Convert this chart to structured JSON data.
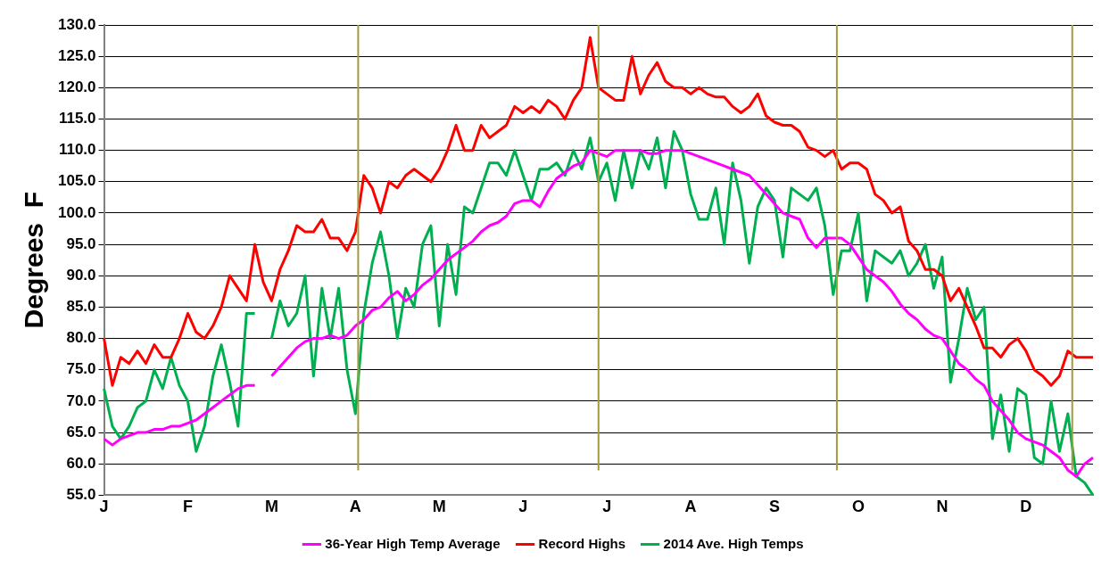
{
  "chart_data": {
    "type": "line",
    "ylabel": "Degrees  F",
    "categories": [
      "J",
      null,
      null,
      null,
      null,
      null,
      null,
      null,
      null,
      null,
      "F",
      null,
      null,
      null,
      null,
      null,
      null,
      null,
      null,
      null,
      "M",
      null,
      null,
      null,
      null,
      null,
      null,
      null,
      null,
      null,
      "A",
      null,
      null,
      null,
      null,
      null,
      null,
      null,
      null,
      null,
      "M",
      null,
      null,
      null,
      null,
      null,
      null,
      null,
      null,
      null,
      "J",
      null,
      null,
      null,
      null,
      null,
      null,
      null,
      null,
      null,
      "J",
      null,
      null,
      null,
      null,
      null,
      null,
      null,
      null,
      null,
      "A",
      null,
      null,
      null,
      null,
      null,
      null,
      null,
      null,
      null,
      "S",
      null,
      null,
      null,
      null,
      null,
      null,
      null,
      null,
      null,
      "O",
      null,
      null,
      null,
      null,
      null,
      null,
      null,
      null,
      null,
      "N",
      null,
      null,
      null,
      null,
      null,
      null,
      null,
      null,
      null,
      "D",
      null,
      null,
      null,
      null,
      null,
      null,
      null,
      null
    ],
    "ylim": [
      55,
      130
    ],
    "yticks": [
      {
        "value": 55,
        "label": "55.0"
      },
      {
        "value": 60,
        "label": "60.0"
      },
      {
        "value": 65,
        "label": "65.0"
      },
      {
        "value": 70,
        "label": "70.0"
      },
      {
        "value": 75,
        "label": "75.0"
      },
      {
        "value": 80,
        "label": "80.0"
      },
      {
        "value": 85,
        "label": "85.0"
      },
      {
        "value": 90,
        "label": "90.0"
      },
      {
        "value": 95,
        "label": "95.0"
      },
      {
        "value": 100,
        "label": "100.0"
      },
      {
        "value": 105,
        "label": "105.0"
      },
      {
        "value": 110,
        "label": "110.0"
      },
      {
        "value": 115,
        "label": "115.0"
      },
      {
        "value": 120,
        "label": "120.0"
      },
      {
        "value": 125,
        "label": "125.0"
      },
      {
        "value": 130,
        "label": "130.0"
      }
    ],
    "grid": "y",
    "legend": "bottom",
    "marker": "none",
    "line_style": "solid",
    "series": [
      {
        "name": "36-Year High Temp Average",
        "color": "#ff00ff",
        "values": [
          64,
          63,
          64,
          64.5,
          65,
          65,
          65.5,
          65.5,
          66,
          66,
          66.5,
          67,
          68,
          69,
          70,
          71,
          72,
          72.5,
          72.5,
          null,
          74,
          75.5,
          77,
          78.5,
          79.5,
          80,
          80,
          80.5,
          80,
          80.5,
          82,
          83,
          84.5,
          85,
          86.5,
          87.5,
          86,
          87,
          88.5,
          89.5,
          91,
          92.5,
          93.5,
          94.5,
          95.5,
          97,
          98,
          98.5,
          99.5,
          101.5,
          102,
          102,
          101,
          103.5,
          105.5,
          106.5,
          107.5,
          108,
          110,
          109.5,
          109,
          110,
          110,
          110,
          110,
          109.5,
          109.5,
          110,
          110,
          110,
          109.5,
          109,
          108.5,
          108,
          107.5,
          107,
          106.5,
          106,
          104.5,
          103,
          101.5,
          100,
          99.5,
          99,
          96,
          94.5,
          96,
          96,
          96,
          95,
          93,
          91,
          90,
          89,
          87.5,
          85.5,
          84,
          83,
          81.5,
          80.5,
          80,
          78,
          76,
          75,
          73.5,
          72.5,
          70,
          68.5,
          67,
          65,
          64,
          63.5,
          63,
          62,
          61,
          59,
          58,
          60,
          61
        ]
      },
      {
        "name": "Record Highs",
        "color": "#ff0000",
        "values": [
          80,
          72.5,
          77,
          76,
          78,
          76,
          79,
          77,
          77,
          80,
          84,
          81,
          80,
          82,
          85,
          90,
          88,
          86,
          95,
          89,
          86,
          91,
          94,
          98,
          97,
          97,
          99,
          96,
          96,
          94,
          97,
          106,
          104,
          100,
          105,
          104,
          106,
          107,
          106,
          105,
          107,
          110,
          114,
          110,
          110,
          114,
          112,
          113,
          114,
          117,
          116,
          117,
          116,
          118,
          117,
          115,
          118,
          120,
          128,
          120,
          119,
          118,
          118,
          125,
          119,
          122,
          124,
          121,
          120,
          120,
          119,
          120,
          119,
          118.5,
          118.5,
          117,
          116,
          117,
          119,
          115.5,
          114.5,
          114,
          114,
          113,
          110.5,
          110,
          109,
          110,
          107,
          108,
          108,
          107,
          103,
          102,
          100,
          101,
          95.5,
          94,
          91,
          91,
          90,
          86,
          88,
          85,
          82,
          78.5,
          78.5,
          77,
          79,
          80,
          78,
          75,
          74,
          72.5,
          74,
          78,
          77,
          77,
          77
        ]
      },
      {
        "name": "2014 Ave. High Temps",
        "color": "#00b050",
        "values": [
          72,
          66,
          64,
          66,
          69,
          70,
          75,
          72,
          77,
          72.5,
          70,
          62,
          66,
          74,
          79,
          73,
          66,
          84,
          84,
          null,
          80,
          86,
          82,
          84,
          90,
          74,
          88,
          80,
          88,
          75,
          68,
          84,
          92,
          97,
          90,
          80,
          88,
          85,
          95,
          98,
          82,
          95,
          87,
          101,
          100,
          104,
          108,
          108,
          106,
          110,
          106,
          102,
          107,
          107,
          108,
          106,
          110,
          107,
          112,
          105,
          108,
          102,
          110,
          104,
          110,
          107,
          112,
          104,
          113,
          110,
          103,
          99,
          99,
          104,
          95,
          108,
          102,
          92,
          101,
          104,
          102,
          93,
          104,
          103,
          102,
          104,
          98,
          87,
          94,
          94,
          100,
          86,
          94,
          93,
          92,
          94,
          90,
          92,
          95,
          88,
          93,
          73,
          80,
          88,
          83,
          85,
          64,
          71,
          62,
          72,
          71,
          61,
          60,
          70,
          62,
          68,
          58,
          57,
          55
        ]
      }
    ]
  }
}
